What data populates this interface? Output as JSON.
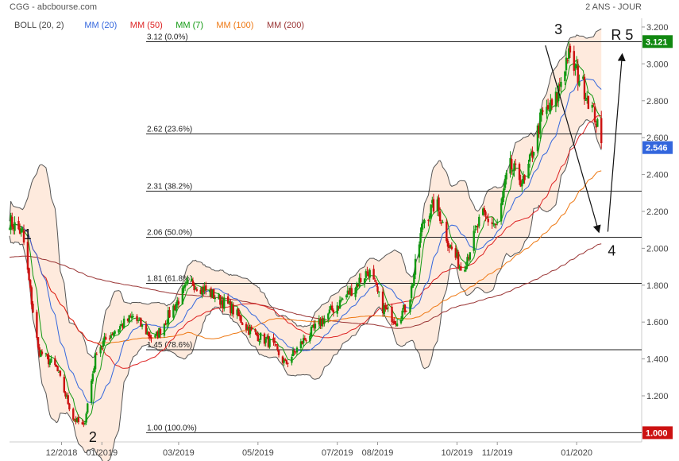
{
  "header": {
    "title": "CGG - abcbourse.com",
    "period": "2 ANS - JOUR"
  },
  "legend": [
    {
      "label": "BOLL (20, 2)",
      "color": "#444444"
    },
    {
      "label": "MM (20)",
      "color": "#3366dd"
    },
    {
      "label": "MM (50)",
      "color": "#dd2222"
    },
    {
      "label": "MM (7)",
      "color": "#119911"
    },
    {
      "label": "MM (100)",
      "color": "#ee7711"
    },
    {
      "label": "MM (200)",
      "color": "#993333"
    }
  ],
  "price_tags": [
    {
      "label": "3.121",
      "value": 3.121,
      "color": "#118811"
    },
    {
      "label": "2.546",
      "value": 2.546,
      "color": "#3366dd"
    },
    {
      "label": "1.000",
      "value": 1.0,
      "color": "#cc1111"
    }
  ],
  "chart_data": {
    "type": "candlestick",
    "yaxis": {
      "min": 0.95,
      "max": 3.23,
      "ticks": [
        1.2,
        1.4,
        1.6,
        1.8,
        2.0,
        2.2,
        2.4,
        2.6,
        2.8,
        3.0,
        3.2
      ],
      "tick_labels": [
        "1.200",
        "1.400",
        "1.600",
        "1.800",
        "2.000",
        "2.200",
        "2.400",
        "2.600",
        "2.800",
        "3.000",
        "3.200"
      ]
    },
    "xaxis": {
      "start": "2018-10-22",
      "end": "2020-02-20",
      "ticks": [
        {
          "date": "2018-12-01",
          "label": "12/2018"
        },
        {
          "date": "2019-01-01",
          "label": "01/2019"
        },
        {
          "date": "2019-03-01",
          "label": "03/2019"
        },
        {
          "date": "2019-05-01",
          "label": "05/2019"
        },
        {
          "date": "2019-07-01",
          "label": "07/2019"
        },
        {
          "date": "2019-08-01",
          "label": "08/2019"
        },
        {
          "date": "2019-10-01",
          "label": "10/2019"
        },
        {
          "date": "2019-11-01",
          "label": "11/2019"
        },
        {
          "date": "2020-01-01",
          "label": "01/2020"
        }
      ]
    },
    "fibonacci": [
      {
        "price": 3.12,
        "label": "3.12  (0.0%)"
      },
      {
        "price": 2.62,
        "label": "2.62  (23.6%)"
      },
      {
        "price": 2.31,
        "label": "2.31  (38.2%)"
      },
      {
        "price": 2.06,
        "label": "2.06  (50.0%)"
      },
      {
        "price": 1.81,
        "label": "1.81  (61.8%)"
      },
      {
        "price": 1.45,
        "label": "1.45  (78.6%)"
      },
      {
        "price": 1.0,
        "label": "1.00  (100.0%)"
      }
    ],
    "anchors": [
      {
        "date": "2018-10-22",
        "price": 2.15
      },
      {
        "date": "2018-11-01",
        "price": 2.08
      },
      {
        "date": "2018-11-13",
        "price": 1.45
      },
      {
        "date": "2018-11-27",
        "price": 1.35
      },
      {
        "date": "2018-12-10",
        "price": 1.08
      },
      {
        "date": "2018-12-18",
        "price": 1.03
      },
      {
        "date": "2018-12-28",
        "price": 1.45
      },
      {
        "date": "2019-01-10",
        "price": 1.55
      },
      {
        "date": "2019-01-25",
        "price": 1.63
      },
      {
        "date": "2019-02-10",
        "price": 1.5
      },
      {
        "date": "2019-02-25",
        "price": 1.68
      },
      {
        "date": "2019-03-10",
        "price": 1.82
      },
      {
        "date": "2019-03-25",
        "price": 1.76
      },
      {
        "date": "2019-04-10",
        "price": 1.68
      },
      {
        "date": "2019-04-25",
        "price": 1.55
      },
      {
        "date": "2019-05-12",
        "price": 1.48
      },
      {
        "date": "2019-05-22",
        "price": 1.37
      },
      {
        "date": "2019-06-05",
        "price": 1.5
      },
      {
        "date": "2019-06-25",
        "price": 1.65
      },
      {
        "date": "2019-07-10",
        "price": 1.76
      },
      {
        "date": "2019-07-25",
        "price": 1.88
      },
      {
        "date": "2019-08-05",
        "price": 1.68
      },
      {
        "date": "2019-08-15",
        "price": 1.61
      },
      {
        "date": "2019-08-25",
        "price": 1.7
      },
      {
        "date": "2019-09-05",
        "price": 2.15
      },
      {
        "date": "2019-09-15",
        "price": 2.25
      },
      {
        "date": "2019-09-25",
        "price": 2.02
      },
      {
        "date": "2019-10-05",
        "price": 1.88
      },
      {
        "date": "2019-10-20",
        "price": 2.18
      },
      {
        "date": "2019-11-01",
        "price": 2.12
      },
      {
        "date": "2019-11-10",
        "price": 2.45
      },
      {
        "date": "2019-11-22",
        "price": 2.35
      },
      {
        "date": "2019-12-05",
        "price": 2.72
      },
      {
        "date": "2019-12-15",
        "price": 2.78
      },
      {
        "date": "2019-12-25",
        "price": 3.05
      },
      {
        "date": "2020-01-05",
        "price": 2.9
      },
      {
        "date": "2020-01-15",
        "price": 2.72
      },
      {
        "date": "2020-01-20",
        "price": 2.55
      }
    ],
    "annotations": [
      {
        "text": "1",
        "date": "2018-11-05",
        "price": 2.05
      },
      {
        "text": "2",
        "date": "2018-12-25",
        "price": 0.95
      },
      {
        "text": "3",
        "date": "2019-12-18",
        "price": 3.16
      },
      {
        "text": "4",
        "date": "2020-01-28",
        "price": 1.96
      },
      {
        "text": "R 5",
        "date": "2020-02-05",
        "price": 3.13
      }
    ],
    "arrows": [
      {
        "from": {
          "date": "2019-12-08",
          "price": 3.1
        },
        "to": {
          "date": "2020-01-18",
          "price": 2.09
        }
      },
      {
        "from": {
          "date": "2020-01-25",
          "price": 2.09
        },
        "to": {
          "date": "2020-02-05",
          "price": 3.05
        }
      }
    ]
  }
}
